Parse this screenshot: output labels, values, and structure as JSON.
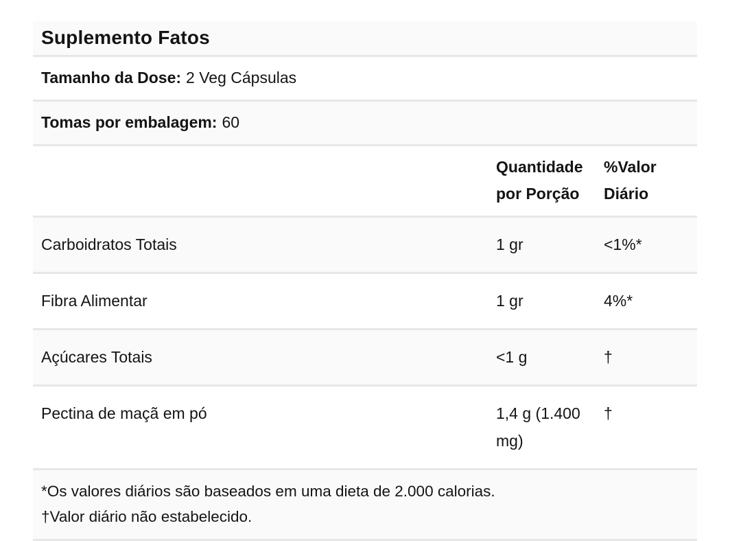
{
  "colors": {
    "stripe": "#fafafa",
    "divider": "#e7e7e7",
    "text": "#141414",
    "background": "#ffffff"
  },
  "table": {
    "title": "Suplemento Fatos",
    "serving_size": {
      "label": "Tamanho da Dose:",
      "value": "2 Veg Cápsulas"
    },
    "servings_per_container": {
      "label": "Tomas por embalagem:",
      "value": "60"
    },
    "columns": {
      "amount": "Quantidade por Porção",
      "daily_value": "%Valor Diário"
    },
    "rows": [
      {
        "name": "Carboidratos Totais",
        "amount": "1 gr",
        "dv": "<1%*"
      },
      {
        "name": "Fibra Alimentar",
        "amount": "1 gr",
        "dv": "4%*"
      },
      {
        "name": "Açúcares Totais",
        "amount": "<1 g",
        "dv": "†"
      },
      {
        "name": "Pectina de maçã em pó",
        "amount": "1,4 g (1.400 mg)",
        "dv": "†"
      }
    ],
    "footnotes": [
      "*Os valores diários são baseados em uma dieta de 2.000 calorias.",
      "†Valor diário não estabelecido."
    ]
  }
}
